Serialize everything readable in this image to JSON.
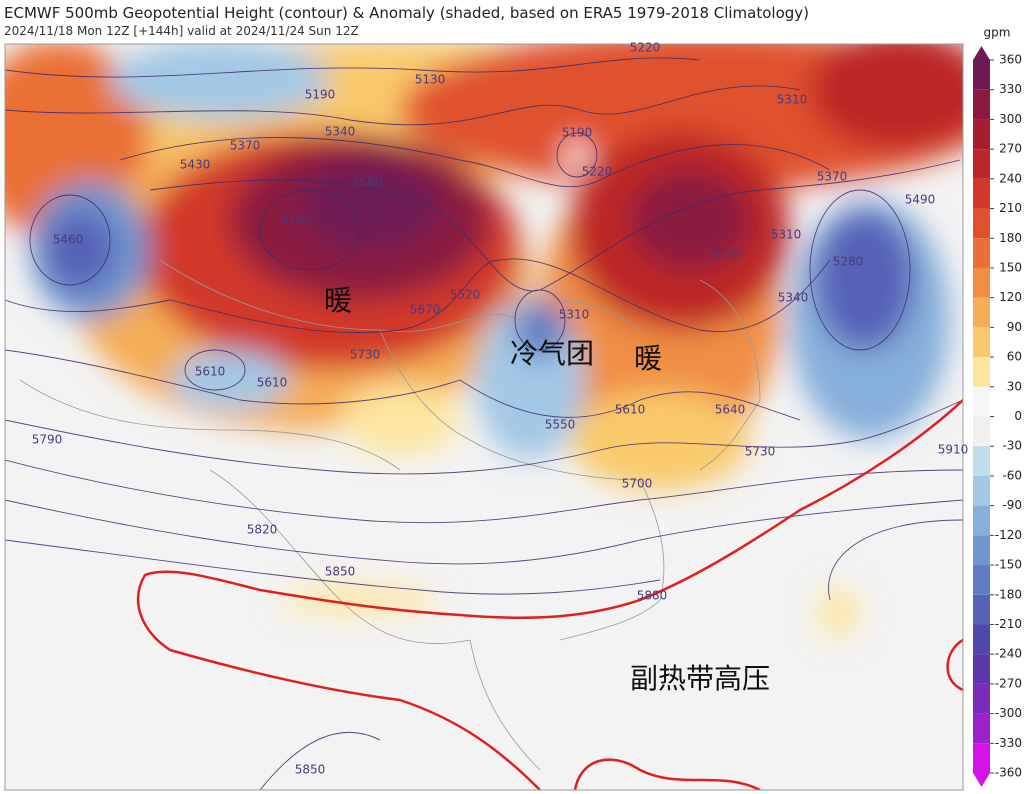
{
  "header": {
    "title": "ECMWF 500mb Geopotential Height (contour) & Anomaly (shaded, based on ERA5 1979-2018 Climatology)",
    "subtitle": "2024/11/18 Mon 12Z [+144h] valid at 2024/11/24 Sun 12Z"
  },
  "colorbar": {
    "unit": "gpm",
    "range": [
      -360,
      360
    ],
    "ticks": [
      360,
      330,
      300,
      270,
      240,
      210,
      180,
      150,
      120,
      90,
      60,
      30,
      0,
      -30,
      -60,
      -90,
      -120,
      -150,
      -180,
      -210,
      -240,
      -270,
      -300,
      -330,
      -360
    ],
    "colors": [
      "#6e1a55",
      "#8a1a40",
      "#a51e30",
      "#bd2628",
      "#d2382a",
      "#e0512e",
      "#ea6f36",
      "#f08e44",
      "#f5ad56",
      "#f9c96c",
      "#fde6a0",
      "#f6f6f6",
      "#f0f0f0",
      "#c3dcec",
      "#a3c8e5",
      "#86afdb",
      "#7096cf",
      "#617cc3",
      "#5762b7",
      "#5049ab",
      "#5b36ab",
      "#7a2bb8",
      "#9c22c8",
      "#d313e8"
    ]
  },
  "contour_labels": [
    5190,
    5130,
    5220,
    5340,
    5370,
    5430,
    5190,
    5220,
    5580,
    5760,
    5460,
    5310,
    5370,
    5490,
    5310,
    5400,
    5280,
    5340,
    5520,
    5670,
    5310,
    5730,
    5610,
    5610,
    5550,
    5610,
    5640,
    5730,
    5700,
    5790,
    5820,
    5850,
    5880,
    5910,
    5850
  ],
  "annotations": [
    "暖",
    "冷气团",
    "暖",
    "副热带高压"
  ]
}
